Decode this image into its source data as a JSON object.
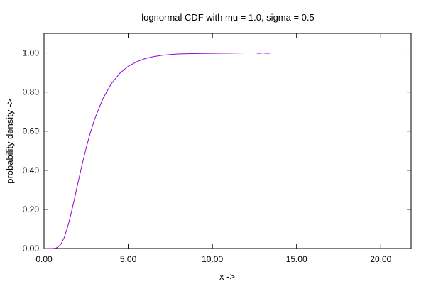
{
  "chart_data": {
    "type": "line",
    "title": "lognormal CDF with mu = 1.0, sigma = 0.5",
    "xlabel": "x ->",
    "ylabel": "probability density ->",
    "xlim": [
      0,
      21.8
    ],
    "ylim": [
      0,
      1.1
    ],
    "x_ticks": [
      0,
      5,
      10,
      15,
      20
    ],
    "x_tick_labels": [
      "0.00",
      "5.00",
      "10.00",
      "15.00",
      "20.00"
    ],
    "y_ticks": [
      0,
      0.2,
      0.4,
      0.6,
      0.8,
      1.0
    ],
    "y_tick_labels": [
      "0.00",
      "0.20",
      "0.40",
      "0.60",
      "0.80",
      "1.00"
    ],
    "grid": false,
    "series": [
      {
        "color": "#9400d3",
        "x": [
          0.0,
          0.3,
          0.5,
          0.7,
          0.8,
          1.0,
          1.2,
          1.4,
          1.6,
          1.8,
          2.0,
          2.25,
          2.5,
          2.75,
          3.0,
          3.5,
          4.0,
          4.5,
          5.0,
          5.5,
          6.0,
          6.5,
          7.0,
          7.5,
          8.0,
          9.0,
          10.0,
          11.0,
          12.0,
          12.5,
          12.8,
          13.0,
          13.2,
          13.5,
          14.0,
          15.0,
          16.0,
          18.0,
          20.0,
          21.8
        ],
        "y": [
          0.0,
          0.0,
          0.0,
          0.002,
          0.006,
          0.022,
          0.056,
          0.109,
          0.176,
          0.251,
          0.33,
          0.425,
          0.513,
          0.592,
          0.66,
          0.767,
          0.843,
          0.896,
          0.932,
          0.955,
          0.971,
          0.981,
          0.988,
          0.992,
          0.995,
          0.997,
          0.998,
          0.999,
          1.0,
          1.0,
          0.998,
          1.0,
          0.998,
          1.0,
          1.0,
          1.0,
          1.0,
          1.0,
          1.0,
          1.0
        ]
      }
    ]
  }
}
